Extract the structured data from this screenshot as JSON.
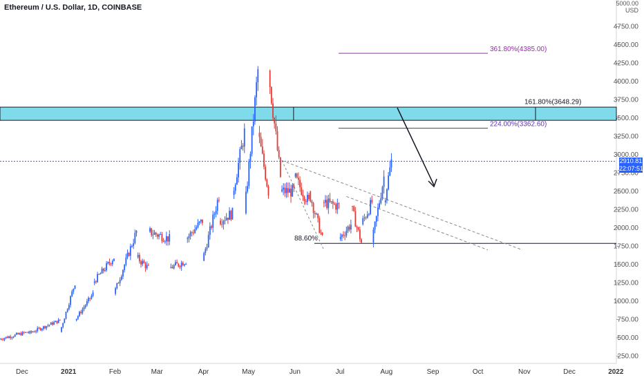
{
  "header": {
    "title": "Ethereum / U.S. Dollar, 1D, COINBASE",
    "currency_top": "5000.00",
    "currency": "USD"
  },
  "price_tag": {
    "price": "2910.81",
    "countdown": "22:07:51"
  },
  "colors": {
    "up": "#2962ff",
    "down": "#e53935",
    "zone_fill": "#7fdbea",
    "fib_purple": "#9c27b0",
    "fib_violet": "#5e35b1",
    "price_line": "#2962ff"
  },
  "chart_data": {
    "type": "candlestick",
    "title": "Ethereum / U.S. Dollar, 1D, COINBASE",
    "ylim": [
      150,
      5000
    ],
    "y_ticks": [
      "250.00",
      "500.00",
      "750.00",
      "1000.00",
      "1250.00",
      "1500.00",
      "1750.00",
      "2000.00",
      "2250.00",
      "2500.00",
      "2750.00",
      "3000.00",
      "3250.00",
      "3500.00",
      "3750.00",
      "4000.00",
      "4250.00",
      "4500.00",
      "4750.00"
    ],
    "x_ticks": [
      "Dec",
      "2021",
      "Feb",
      "Mar",
      "Apr",
      "May",
      "Jun",
      "Jul",
      "Aug",
      "Sep",
      "Oct",
      "Nov",
      "Dec",
      "2022"
    ],
    "x_start": "2020-11-20",
    "x_end": "2022-01-05",
    "candles": [
      {
        "date": "2020-11-20",
        "o": 480,
        "c": 560
      },
      {
        "date": "2020-12-10",
        "o": 560,
        "c": 580
      },
      {
        "date": "2020-12-31",
        "o": 580,
        "c": 740
      },
      {
        "date": "2021-01-10",
        "o": 740,
        "c": 1250
      },
      {
        "date": "2021-01-22",
        "o": 1250,
        "c": 1100
      },
      {
        "date": "2021-02-05",
        "o": 1100,
        "c": 1600
      },
      {
        "date": "2021-02-20",
        "o": 1600,
        "c": 1950
      },
      {
        "date": "2021-02-28",
        "o": 1950,
        "c": 1450
      },
      {
        "date": "2021-03-14",
        "o": 1450,
        "c": 1850
      },
      {
        "date": "2021-03-25",
        "o": 1850,
        "c": 1550
      },
      {
        "date": "2021-04-05",
        "o": 1550,
        "c": 2100
      },
      {
        "date": "2021-04-16",
        "o": 2100,
        "c": 2450
      },
      {
        "date": "2021-04-25",
        "o": 2450,
        "c": 2200
      },
      {
        "date": "2021-05-03",
        "o": 2200,
        "c": 3300
      },
      {
        "date": "2021-05-12",
        "o": 3300,
        "c": 4150
      },
      {
        "date": "2021-05-19",
        "o": 4150,
        "c": 2500
      },
      {
        "date": "2021-05-27",
        "o": 2500,
        "c": 2700
      },
      {
        "date": "2021-06-05",
        "o": 2700,
        "c": 2500
      },
      {
        "date": "2021-06-15",
        "o": 2500,
        "c": 2350
      },
      {
        "date": "2021-06-24",
        "o": 2350,
        "c": 1850
      },
      {
        "date": "2021-07-05",
        "o": 1850,
        "c": 2300
      },
      {
        "date": "2021-07-13",
        "o": 2300,
        "c": 2050
      },
      {
        "date": "2021-07-20",
        "o": 2050,
        "c": 1800
      },
      {
        "date": "2021-07-27",
        "o": 1800,
        "c": 2350
      },
      {
        "date": "2021-08-04",
        "o": 2350,
        "c": 2700
      },
      {
        "date": "2021-08-09",
        "o": 2700,
        "c": 2910
      }
    ],
    "last_price": 2910.81,
    "annotations": {
      "resistance_zone": [
        3470,
        3650
      ],
      "support_line": 1790,
      "fib_levels": [
        {
          "label": "361.80%(4385.00)",
          "value": 4385
        },
        {
          "label": "161.80%(3648.29)",
          "value": 3648.29
        },
        {
          "label": "224.00%(3362.60)",
          "value": 3362.6
        },
        {
          "label": "88.60%",
          "value": 1790
        }
      ]
    }
  }
}
